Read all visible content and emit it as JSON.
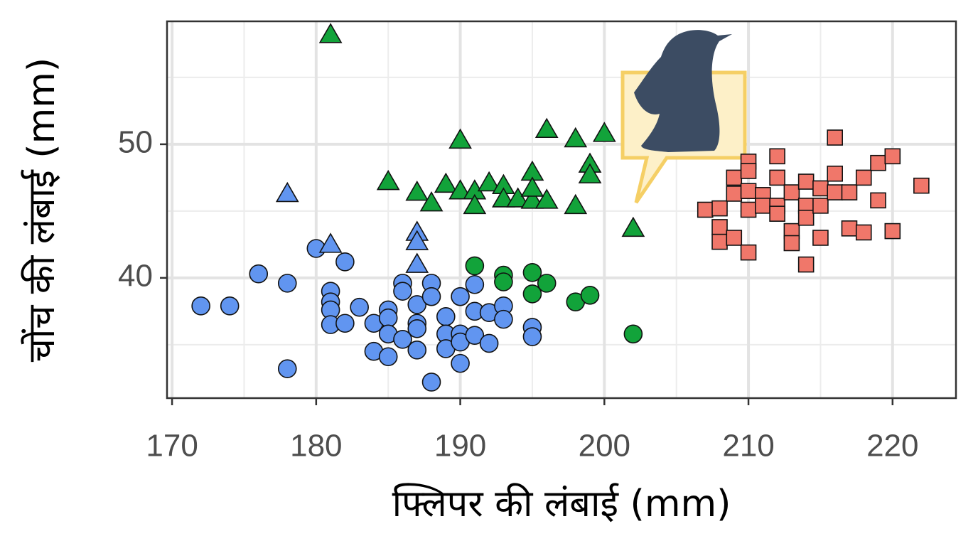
{
  "chart_data": {
    "type": "scatter",
    "x_label": "फ्लिपर की लंबाई (mm)",
    "y_label": "चोंच की लंबाई (mm)",
    "xlim": [
      169.65,
      224.4
    ],
    "ylim": [
      31.0,
      59.2
    ],
    "xticks": [
      170,
      180,
      190,
      200,
      210,
      220
    ],
    "yticks": [
      40,
      50
    ],
    "grid": true,
    "minor_grid": true,
    "series": [
      {
        "color": "#6195f0",
        "marker": "circle",
        "x": [
          172,
          174,
          176,
          178,
          178,
          180,
          182,
          181,
          181,
          181,
          181,
          182,
          183,
          184,
          184,
          185,
          185,
          185,
          185,
          186,
          186,
          186,
          187,
          187,
          187,
          187,
          188,
          188,
          188,
          189,
          189,
          189,
          190,
          190,
          190,
          190,
          191,
          191,
          191,
          192,
          192,
          193,
          193,
          195,
          195
        ],
        "values": [
          37.9,
          37.9,
          40.3,
          39.6,
          33.2,
          42.2,
          41.2,
          39.0,
          38.2,
          37.6,
          36.5,
          36.6,
          37.8,
          36.6,
          34.5,
          37.6,
          37.0,
          35.8,
          34.1,
          39.6,
          39.0,
          35.4,
          38.0,
          36.6,
          36.2,
          34.6,
          39.6,
          38.6,
          32.2,
          37.1,
          35.8,
          34.7,
          38.6,
          35.8,
          35.2,
          33.6,
          39.5,
          37.5,
          35.7,
          37.4,
          35.1,
          37.9,
          36.9,
          36.3,
          35.6
        ]
      },
      {
        "color": "#6195f0",
        "marker": "triangle",
        "x": [
          178,
          181,
          187,
          187,
          187
        ],
        "values": [
          46.3,
          42.5,
          43.4,
          42.7,
          41.0
        ]
      },
      {
        "color": "#12a33a",
        "marker": "circle",
        "x": [
          191,
          193,
          193,
          195,
          195,
          196,
          198,
          199,
          202
        ],
        "values": [
          40.9,
          40.2,
          39.7,
          40.4,
          38.8,
          39.6,
          38.2,
          38.7,
          35.8
        ]
      },
      {
        "color": "#12a33a",
        "marker": "triangle",
        "x": [
          181,
          185,
          187,
          188,
          189,
          190,
          190,
          191,
          191,
          192,
          193,
          193,
          194,
          195,
          195,
          196,
          196,
          198,
          198,
          199,
          199,
          200,
          202,
          195
        ],
        "values": [
          58.2,
          47.2,
          46.4,
          45.6,
          47.0,
          50.3,
          46.5,
          46.5,
          45.4,
          47.1,
          46.9,
          45.9,
          45.9,
          47.9,
          45.8,
          51.1,
          45.8,
          50.4,
          45.4,
          48.5,
          47.7,
          50.8,
          43.7,
          46.7
        ]
      },
      {
        "color": "#f0776a",
        "marker": "square",
        "x": [
          207,
          208,
          208,
          208,
          209,
          209,
          209,
          210,
          210,
          210,
          210,
          210,
          211,
          211,
          212,
          212,
          212,
          212,
          213,
          213,
          213,
          214,
          214,
          214,
          214,
          215,
          215,
          215,
          216,
          216,
          216,
          217,
          217,
          218,
          218,
          219,
          219,
          220,
          220,
          222
        ],
        "values": [
          45.1,
          45.2,
          43.8,
          42.7,
          47.5,
          46.3,
          43.0,
          48.7,
          48.0,
          46.5,
          45.1,
          41.9,
          46.2,
          45.4,
          49.1,
          47.5,
          45.4,
          44.8,
          46.4,
          43.5,
          42.6,
          47.2,
          45.4,
          44.5,
          41.0,
          46.7,
          45.4,
          43.0,
          50.5,
          47.8,
          46.4,
          46.4,
          43.7,
          47.5,
          43.4,
          48.6,
          45.8,
          49.1,
          43.5,
          46.9
        ]
      }
    ]
  }
}
